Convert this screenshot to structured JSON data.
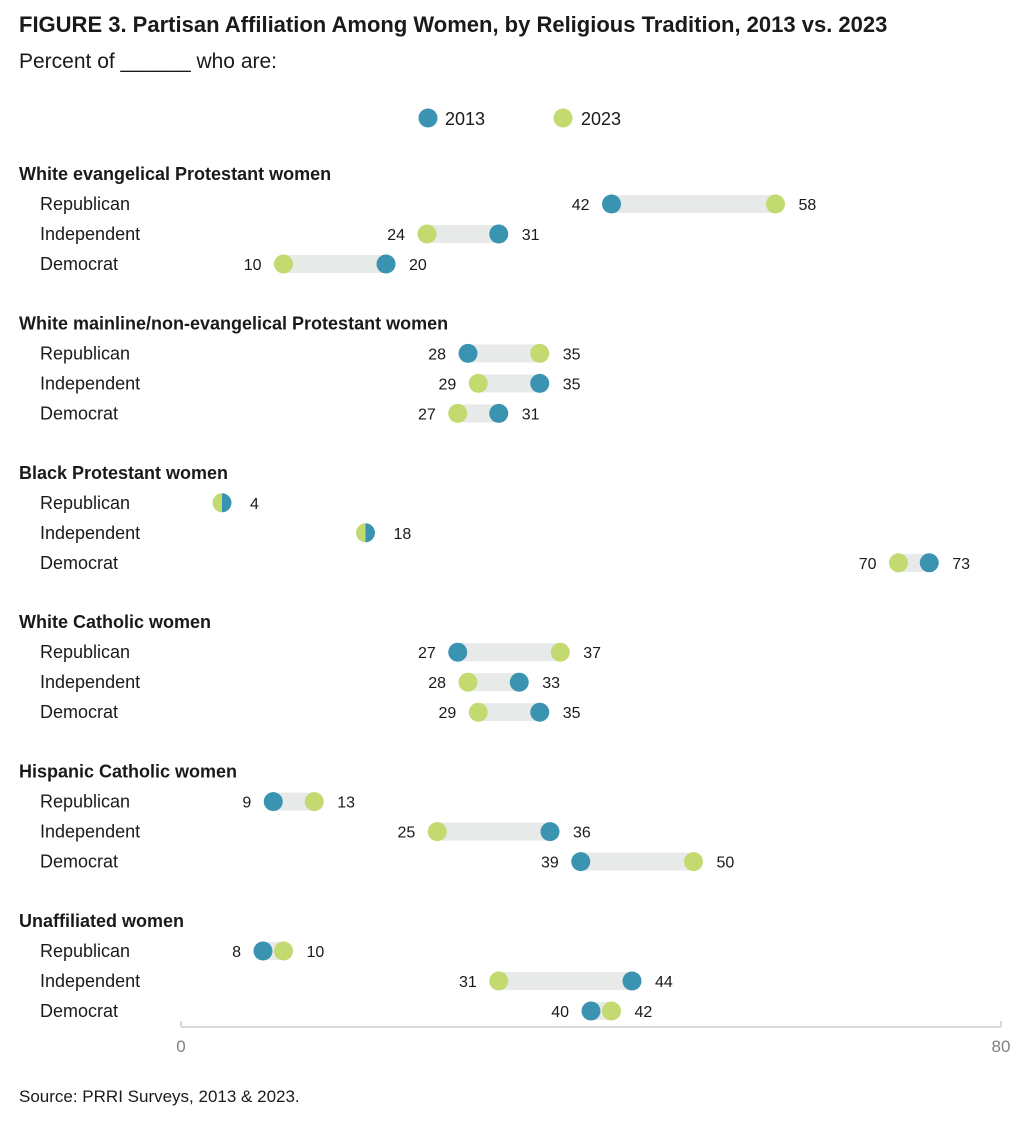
{
  "title": "FIGURE 3. Partisan Affiliation Among Women, by Religious Tradition, 2013 vs. 2023",
  "subtitle": "Percent of ______ who are:",
  "source": "Source: PRRI Surveys, 2013 & 2023.",
  "colors": {
    "2013": "#3a93b0",
    "2023": "#c2da6f",
    "bar": "#e8eaea",
    "axis": "#d9d9d9",
    "tick": "#808080"
  },
  "chart_data": {
    "type": "dumbbell",
    "legend": {
      "placement": "top-center",
      "entries": [
        "2013",
        "2023"
      ]
    },
    "xlim": [
      0,
      80
    ],
    "x_ticks": [
      "0",
      "80"
    ],
    "series": [
      "2013",
      "2023"
    ],
    "groups": [
      {
        "name": "White evangelical Protestant women",
        "rows": [
          {
            "label": "Republican",
            "y2013": 42,
            "y2023": 58
          },
          {
            "label": "Independent",
            "y2013": 31,
            "y2023": 24
          },
          {
            "label": "Democrat",
            "y2013": 20,
            "y2023": 10
          }
        ]
      },
      {
        "name": "White mainline/non-evangelical Protestant women",
        "rows": [
          {
            "label": "Republican",
            "y2013": 28,
            "y2023": 35
          },
          {
            "label": "Independent",
            "y2013": 35,
            "y2023": 29
          },
          {
            "label": "Democrat",
            "y2013": 31,
            "y2023": 27
          }
        ]
      },
      {
        "name": "Black Protestant women",
        "rows": [
          {
            "label": "Republican",
            "y2013": 4,
            "y2023": 4
          },
          {
            "label": "Independent",
            "y2013": 18,
            "y2023": 18
          },
          {
            "label": "Democrat",
            "y2013": 73,
            "y2023": 70
          }
        ]
      },
      {
        "name": "White Catholic women",
        "rows": [
          {
            "label": "Republican",
            "y2013": 27,
            "y2023": 37
          },
          {
            "label": "Independent",
            "y2013": 33,
            "y2023": 28
          },
          {
            "label": "Democrat",
            "y2013": 35,
            "y2023": 29
          }
        ]
      },
      {
        "name": "Hispanic Catholic women",
        "rows": [
          {
            "label": "Republican",
            "y2013": 9,
            "y2023": 13
          },
          {
            "label": "Independent",
            "y2013": 36,
            "y2023": 25
          },
          {
            "label": "Democrat",
            "y2013": 39,
            "y2023": 50
          }
        ]
      },
      {
        "name": "Unaffiliated women",
        "rows": [
          {
            "label": "Republican",
            "y2013": 8,
            "y2023": 10
          },
          {
            "label": "Independent",
            "y2013": 44,
            "y2023": 31
          },
          {
            "label": "Democrat",
            "y2013": 40,
            "y2023": 42
          }
        ]
      }
    ]
  }
}
